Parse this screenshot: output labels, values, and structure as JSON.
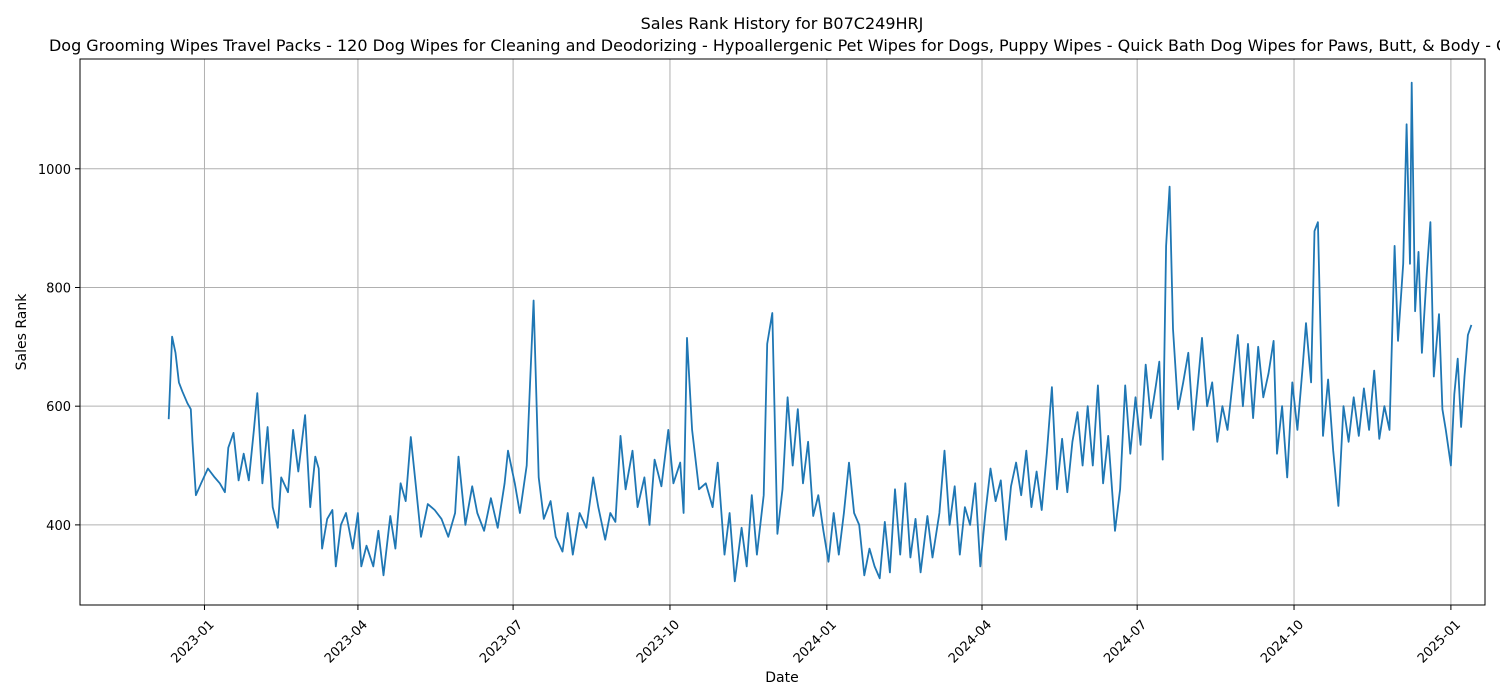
{
  "chart_data": {
    "type": "line",
    "title": "Sales Rank History for B07C249HRJ",
    "subtitle": "Dog Grooming Wipes Travel Packs - 120 Dog Wipes for Cleaning and Deodorizing - Hypoallergenic Pet Wipes for Dogs, Puppy Wipes - Quick Bath Dog Wipes for Paws, Butt, & Body - Gr",
    "xlabel": "Date",
    "ylabel": "Sales Rank",
    "xlim": [
      "2022-10-20",
      "2025-01-21"
    ],
    "ylim": [
      265,
      1185
    ],
    "grid": true,
    "x_ticks": [
      "2023-01-01",
      "2023-04-01",
      "2023-07-01",
      "2023-10-01",
      "2024-01-01",
      "2024-04-01",
      "2024-07-01",
      "2024-10-01",
      "2025-01-01"
    ],
    "x_tick_labels": [
      "2023-01",
      "2023-04",
      "2023-07",
      "2023-10",
      "2024-01",
      "2024-04",
      "2024-07",
      "2024-10",
      "2025-01"
    ],
    "y_ticks": [
      400,
      600,
      800,
      1000
    ],
    "y_tick_labels": [
      "400",
      "600",
      "800",
      "1000"
    ],
    "line_color": "#1f77b4",
    "series": [
      {
        "points": [
          [
            "2022-12-11",
            578
          ],
          [
            "2022-12-13",
            717
          ],
          [
            "2022-12-15",
            690
          ],
          [
            "2022-12-17",
            640
          ],
          [
            "2022-12-19",
            625
          ],
          [
            "2022-12-22",
            605
          ],
          [
            "2022-12-24",
            595
          ],
          [
            "2022-12-25",
            540
          ],
          [
            "2022-12-27",
            450
          ],
          [
            "2022-12-30",
            470
          ],
          [
            "2023-01-03",
            495
          ],
          [
            "2023-01-07",
            480
          ],
          [
            "2023-01-10",
            470
          ],
          [
            "2023-01-13",
            455
          ],
          [
            "2023-01-15",
            530
          ],
          [
            "2023-01-18",
            555
          ],
          [
            "2023-01-21",
            475
          ],
          [
            "2023-01-24",
            520
          ],
          [
            "2023-01-27",
            475
          ],
          [
            "2023-01-30",
            560
          ],
          [
            "2023-02-01",
            622
          ],
          [
            "2023-02-04",
            470
          ],
          [
            "2023-02-07",
            565
          ],
          [
            "2023-02-10",
            430
          ],
          [
            "2023-02-13",
            395
          ],
          [
            "2023-02-15",
            480
          ],
          [
            "2023-02-19",
            455
          ],
          [
            "2023-02-22",
            560
          ],
          [
            "2023-02-25",
            490
          ],
          [
            "2023-03-01",
            585
          ],
          [
            "2023-03-04",
            430
          ],
          [
            "2023-03-07",
            515
          ],
          [
            "2023-03-09",
            495
          ],
          [
            "2023-03-11",
            360
          ],
          [
            "2023-03-14",
            410
          ],
          [
            "2023-03-17",
            425
          ],
          [
            "2023-03-19",
            330
          ],
          [
            "2023-03-22",
            400
          ],
          [
            "2023-03-25",
            420
          ],
          [
            "2023-03-29",
            360
          ],
          [
            "2023-04-01",
            420
          ],
          [
            "2023-04-03",
            330
          ],
          [
            "2023-04-06",
            365
          ],
          [
            "2023-04-10",
            330
          ],
          [
            "2023-04-13",
            390
          ],
          [
            "2023-04-16",
            315
          ],
          [
            "2023-04-20",
            415
          ],
          [
            "2023-04-23",
            360
          ],
          [
            "2023-04-26",
            470
          ],
          [
            "2023-04-29",
            440
          ],
          [
            "2023-05-02",
            548
          ],
          [
            "2023-05-05",
            465
          ],
          [
            "2023-05-08",
            380
          ],
          [
            "2023-05-12",
            435
          ],
          [
            "2023-05-16",
            425
          ],
          [
            "2023-05-20",
            410
          ],
          [
            "2023-05-24",
            380
          ],
          [
            "2023-05-28",
            420
          ],
          [
            "2023-05-30",
            515
          ],
          [
            "2023-06-03",
            400
          ],
          [
            "2023-06-07",
            465
          ],
          [
            "2023-06-10",
            420
          ],
          [
            "2023-06-14",
            390
          ],
          [
            "2023-06-18",
            445
          ],
          [
            "2023-06-22",
            395
          ],
          [
            "2023-06-26",
            470
          ],
          [
            "2023-06-28",
            525
          ],
          [
            "2023-07-02",
            470
          ],
          [
            "2023-07-05",
            420
          ],
          [
            "2023-07-09",
            500
          ],
          [
            "2023-07-11",
            640
          ],
          [
            "2023-07-13",
            778
          ],
          [
            "2023-07-16",
            480
          ],
          [
            "2023-07-19",
            410
          ],
          [
            "2023-07-23",
            440
          ],
          [
            "2023-07-26",
            380
          ],
          [
            "2023-07-30",
            355
          ],
          [
            "2023-08-02",
            420
          ],
          [
            "2023-08-05",
            350
          ],
          [
            "2023-08-09",
            420
          ],
          [
            "2023-08-13",
            395
          ],
          [
            "2023-08-17",
            480
          ],
          [
            "2023-08-20",
            430
          ],
          [
            "2023-08-24",
            375
          ],
          [
            "2023-08-27",
            420
          ],
          [
            "2023-08-30",
            405
          ],
          [
            "2023-09-02",
            550
          ],
          [
            "2023-09-05",
            460
          ],
          [
            "2023-09-09",
            525
          ],
          [
            "2023-09-12",
            430
          ],
          [
            "2023-09-16",
            480
          ],
          [
            "2023-09-19",
            400
          ],
          [
            "2023-09-22",
            510
          ],
          [
            "2023-09-26",
            465
          ],
          [
            "2023-09-30",
            560
          ],
          [
            "2023-10-03",
            470
          ],
          [
            "2023-10-07",
            505
          ],
          [
            "2023-10-09",
            420
          ],
          [
            "2023-10-11",
            715
          ],
          [
            "2023-10-14",
            560
          ],
          [
            "2023-10-18",
            460
          ],
          [
            "2023-10-22",
            470
          ],
          [
            "2023-10-26",
            430
          ],
          [
            "2023-10-29",
            505
          ],
          [
            "2023-11-02",
            350
          ],
          [
            "2023-11-05",
            420
          ],
          [
            "2023-11-08",
            305
          ],
          [
            "2023-11-12",
            395
          ],
          [
            "2023-11-15",
            330
          ],
          [
            "2023-11-18",
            450
          ],
          [
            "2023-11-21",
            350
          ],
          [
            "2023-11-25",
            450
          ],
          [
            "2023-11-27",
            705
          ],
          [
            "2023-11-30",
            757
          ],
          [
            "2023-12-03",
            385
          ],
          [
            "2023-12-06",
            460
          ],
          [
            "2023-12-09",
            615
          ],
          [
            "2023-12-12",
            500
          ],
          [
            "2023-12-15",
            595
          ],
          [
            "2023-12-18",
            470
          ],
          [
            "2023-12-21",
            540
          ],
          [
            "2023-12-24",
            415
          ],
          [
            "2023-12-27",
            450
          ],
          [
            "2023-12-30",
            390
          ],
          [
            "2024-01-02",
            338
          ],
          [
            "2024-01-05",
            420
          ],
          [
            "2024-01-08",
            350
          ],
          [
            "2024-01-11",
            420
          ],
          [
            "2024-01-14",
            505
          ],
          [
            "2024-01-17",
            420
          ],
          [
            "2024-01-20",
            400
          ],
          [
            "2024-01-23",
            315
          ],
          [
            "2024-01-26",
            360
          ],
          [
            "2024-01-29",
            330
          ],
          [
            "2024-02-01",
            310
          ],
          [
            "2024-02-04",
            405
          ],
          [
            "2024-02-07",
            320
          ],
          [
            "2024-02-10",
            460
          ],
          [
            "2024-02-13",
            350
          ],
          [
            "2024-02-16",
            470
          ],
          [
            "2024-02-19",
            345
          ],
          [
            "2024-02-22",
            410
          ],
          [
            "2024-02-25",
            320
          ],
          [
            "2024-02-29",
            415
          ],
          [
            "2024-03-03",
            345
          ],
          [
            "2024-03-07",
            420
          ],
          [
            "2024-03-10",
            525
          ],
          [
            "2024-03-13",
            400
          ],
          [
            "2024-03-16",
            465
          ],
          [
            "2024-03-19",
            350
          ],
          [
            "2024-03-22",
            430
          ],
          [
            "2024-03-25",
            400
          ],
          [
            "2024-03-28",
            470
          ],
          [
            "2024-03-31",
            330
          ],
          [
            "2024-04-03",
            420
          ],
          [
            "2024-04-06",
            495
          ],
          [
            "2024-04-09",
            440
          ],
          [
            "2024-04-12",
            475
          ],
          [
            "2024-04-15",
            375
          ],
          [
            "2024-04-18",
            465
          ],
          [
            "2024-04-21",
            505
          ],
          [
            "2024-04-24",
            450
          ],
          [
            "2024-04-27",
            525
          ],
          [
            "2024-04-30",
            430
          ],
          [
            "2024-05-03",
            490
          ],
          [
            "2024-05-06",
            425
          ],
          [
            "2024-05-09",
            520
          ],
          [
            "2024-05-12",
            632
          ],
          [
            "2024-05-15",
            460
          ],
          [
            "2024-05-18",
            545
          ],
          [
            "2024-05-21",
            455
          ],
          [
            "2024-05-24",
            540
          ],
          [
            "2024-05-27",
            590
          ],
          [
            "2024-05-30",
            500
          ],
          [
            "2024-06-02",
            600
          ],
          [
            "2024-06-05",
            500
          ],
          [
            "2024-06-08",
            635
          ],
          [
            "2024-06-11",
            470
          ],
          [
            "2024-06-14",
            550
          ],
          [
            "2024-06-18",
            390
          ],
          [
            "2024-06-21",
            460
          ],
          [
            "2024-06-24",
            635
          ],
          [
            "2024-06-27",
            520
          ],
          [
            "2024-06-30",
            615
          ],
          [
            "2024-07-03",
            535
          ],
          [
            "2024-07-06",
            670
          ],
          [
            "2024-07-09",
            580
          ],
          [
            "2024-07-12",
            635
          ],
          [
            "2024-07-14",
            675
          ],
          [
            "2024-07-16",
            510
          ],
          [
            "2024-07-18",
            870
          ],
          [
            "2024-07-20",
            970
          ],
          [
            "2024-07-22",
            730
          ],
          [
            "2024-07-25",
            595
          ],
          [
            "2024-07-28",
            640
          ],
          [
            "2024-07-31",
            690
          ],
          [
            "2024-08-03",
            560
          ],
          [
            "2024-08-06",
            650
          ],
          [
            "2024-08-08",
            715
          ],
          [
            "2024-08-11",
            600
          ],
          [
            "2024-08-14",
            640
          ],
          [
            "2024-08-17",
            540
          ],
          [
            "2024-08-20",
            600
          ],
          [
            "2024-08-23",
            560
          ],
          [
            "2024-08-26",
            640
          ],
          [
            "2024-08-29",
            720
          ],
          [
            "2024-09-01",
            600
          ],
          [
            "2024-09-04",
            705
          ],
          [
            "2024-09-07",
            580
          ],
          [
            "2024-09-10",
            700
          ],
          [
            "2024-09-13",
            615
          ],
          [
            "2024-09-16",
            655
          ],
          [
            "2024-09-19",
            710
          ],
          [
            "2024-09-21",
            520
          ],
          [
            "2024-09-24",
            600
          ],
          [
            "2024-09-27",
            480
          ],
          [
            "2024-09-30",
            640
          ],
          [
            "2024-10-03",
            560
          ],
          [
            "2024-10-06",
            665
          ],
          [
            "2024-10-08",
            740
          ],
          [
            "2024-10-11",
            640
          ],
          [
            "2024-10-13",
            895
          ],
          [
            "2024-10-15",
            910
          ],
          [
            "2024-10-18",
            550
          ],
          [
            "2024-10-21",
            645
          ],
          [
            "2024-10-24",
            525
          ],
          [
            "2024-10-27",
            432
          ],
          [
            "2024-10-30",
            600
          ],
          [
            "2024-11-02",
            540
          ],
          [
            "2024-11-05",
            615
          ],
          [
            "2024-11-08",
            550
          ],
          [
            "2024-11-11",
            630
          ],
          [
            "2024-11-14",
            560
          ],
          [
            "2024-11-17",
            660
          ],
          [
            "2024-11-20",
            545
          ],
          [
            "2024-11-23",
            600
          ],
          [
            "2024-11-26",
            560
          ],
          [
            "2024-11-29",
            870
          ],
          [
            "2024-12-01",
            710
          ],
          [
            "2024-12-04",
            840
          ],
          [
            "2024-12-06",
            1075
          ],
          [
            "2024-12-08",
            840
          ],
          [
            "2024-12-09",
            1145
          ],
          [
            "2024-12-11",
            760
          ],
          [
            "2024-12-13",
            860
          ],
          [
            "2024-12-15",
            690
          ],
          [
            "2024-12-18",
            830
          ],
          [
            "2024-12-20",
            910
          ],
          [
            "2024-12-22",
            650
          ],
          [
            "2024-12-25",
            755
          ],
          [
            "2024-12-27",
            595
          ],
          [
            "2024-12-29",
            560
          ],
          [
            "2025-01-01",
            500
          ],
          [
            "2025-01-03",
            620
          ],
          [
            "2025-01-05",
            680
          ],
          [
            "2025-01-07",
            565
          ],
          [
            "2025-01-09",
            650
          ],
          [
            "2025-01-11",
            720
          ],
          [
            "2025-01-13",
            737
          ]
        ]
      }
    ]
  }
}
